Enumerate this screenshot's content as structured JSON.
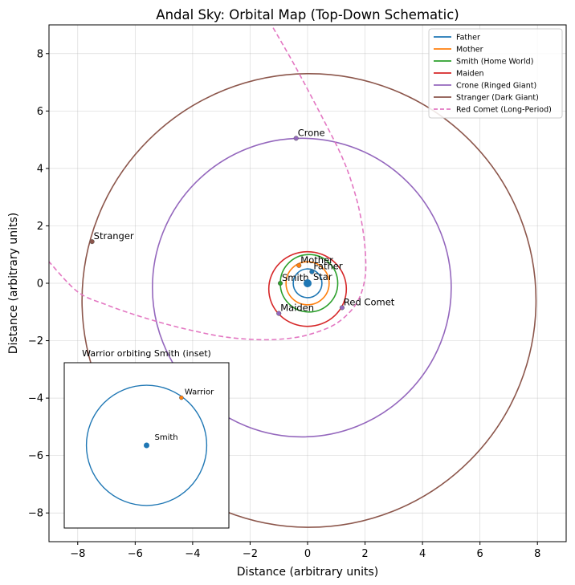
{
  "chart_data": {
    "type": "scatter",
    "title": "Andal Sky: Orbital Map (Top-Down Schematic)",
    "xlabel": "Distance (arbitrary units)",
    "ylabel": "Distance (arbitrary units)",
    "xlim": [
      -9,
      9
    ],
    "ylim": [
      -9,
      9
    ],
    "xticks": [
      -8,
      -6,
      -4,
      -2,
      0,
      2,
      4,
      6,
      8
    ],
    "yticks": [
      -8,
      -6,
      -4,
      -2,
      0,
      2,
      4,
      6,
      8
    ],
    "tick_labels": [
      "−8",
      "−6",
      "−4",
      "−2",
      "0",
      "2",
      "4",
      "6",
      "8"
    ],
    "grid": true,
    "legend_position": "top-right",
    "star": {
      "label": "Star",
      "x": 0,
      "y": 0,
      "color": "#1f77b4"
    },
    "orbits": [
      {
        "name": "Father",
        "color": "#1f77b4",
        "center": [
          0,
          0
        ],
        "rx": 0.5,
        "ry": 0.5,
        "body": {
          "label": "Father",
          "x": 0.15,
          "y": 0.4
        }
      },
      {
        "name": "Mother",
        "color": "#ff7f0e",
        "center": [
          0,
          0
        ],
        "rx": 0.75,
        "ry": 0.75,
        "body": {
          "label": "Mother",
          "x": -0.3,
          "y": 0.62
        }
      },
      {
        "name": "Smith (Home World)",
        "color": "#2ca02c",
        "center": [
          0.05,
          0
        ],
        "rx": 1.0,
        "ry": 1.0,
        "body": {
          "label": "Smith",
          "x": -0.95,
          "y": 0.0
        }
      },
      {
        "name": "Maiden",
        "color": "#d62728",
        "center": [
          0,
          -0.2
        ],
        "rx": 1.35,
        "ry": 1.3,
        "body": {
          "label": "Maiden",
          "x": -1.0,
          "y": -1.05
        }
      },
      {
        "name": "Crone (Ringed Giant)",
        "color": "#9467bd",
        "center": [
          -0.2,
          -0.15
        ],
        "rx": 5.2,
        "ry": 5.2,
        "body": {
          "label": "Crone",
          "x": -0.4,
          "y": 5.05
        }
      },
      {
        "name": "Stranger (Dark Giant)",
        "color": "#8c564b",
        "center": [
          0.05,
          -0.6
        ],
        "rx": 7.9,
        "ry": 7.9,
        "body": {
          "label": "Stranger",
          "x": -7.5,
          "y": 1.45
        }
      }
    ],
    "comet": {
      "name": "Red Comet (Long-Period)",
      "color": "#e377c2",
      "style": "dashed",
      "path_x": [
        -1.2,
        -0.4,
        0.5,
        1.2,
        1.6,
        1.85,
        2.0,
        2.0,
        1.7,
        1.0,
        0.0,
        -1.0,
        -2.0,
        -3.0,
        -4.0,
        -5.0,
        -6.0,
        -7.0,
        -8.0,
        -9.0
      ],
      "path_y": [
        8.9,
        7.5,
        5.8,
        4.4,
        3.3,
        2.3,
        1.2,
        0.2,
        -0.7,
        -1.4,
        -1.8,
        -1.95,
        -1.95,
        -1.85,
        -1.65,
        -1.4,
        -1.1,
        -0.75,
        -0.3,
        0.75
      ],
      "body": {
        "label": "Red Comet",
        "x": 1.2,
        "y": -0.85
      }
    },
    "inset": {
      "title": "Warrior orbiting Smith (inset)",
      "center_label": "Smith",
      "moon_label": "Warrior",
      "orbit_color": "#1f77b4",
      "moon_color": "#ff7f0e",
      "xlim": [
        -1.3,
        1.3
      ],
      "ylim": [
        -1.3,
        1.3
      ],
      "orbit_radius": 0.95,
      "moon": {
        "x": 0.55,
        "y": 0.75
      }
    }
  }
}
